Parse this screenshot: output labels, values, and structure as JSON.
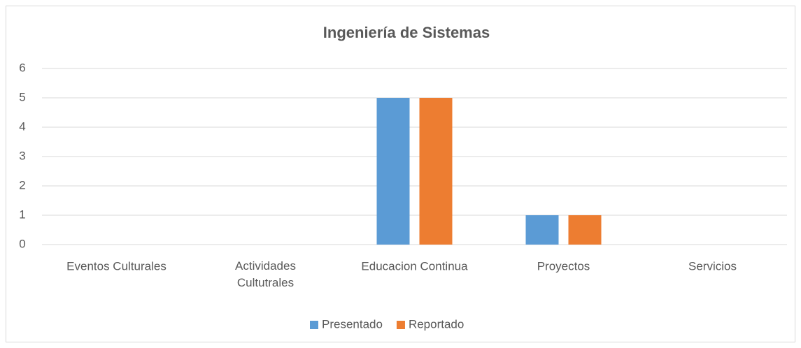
{
  "chart_data": {
    "type": "bar",
    "title": "Ingeniería de Sistemas",
    "categories": [
      "Eventos Culturales",
      "Actividades Cultutrales",
      "Educacion Continua",
      "Proyectos",
      "Servicios"
    ],
    "series": [
      {
        "name": "Presentado",
        "color": "#5b9bd5",
        "values": [
          0,
          0,
          5,
          1,
          0
        ]
      },
      {
        "name": "Reportado",
        "color": "#ed7d31",
        "values": [
          0,
          0,
          5,
          1,
          0
        ]
      }
    ],
    "ylim": [
      0,
      6
    ],
    "yticks": [
      0,
      1,
      2,
      3,
      4,
      5,
      6
    ],
    "grid": true,
    "legend": "bottom"
  }
}
